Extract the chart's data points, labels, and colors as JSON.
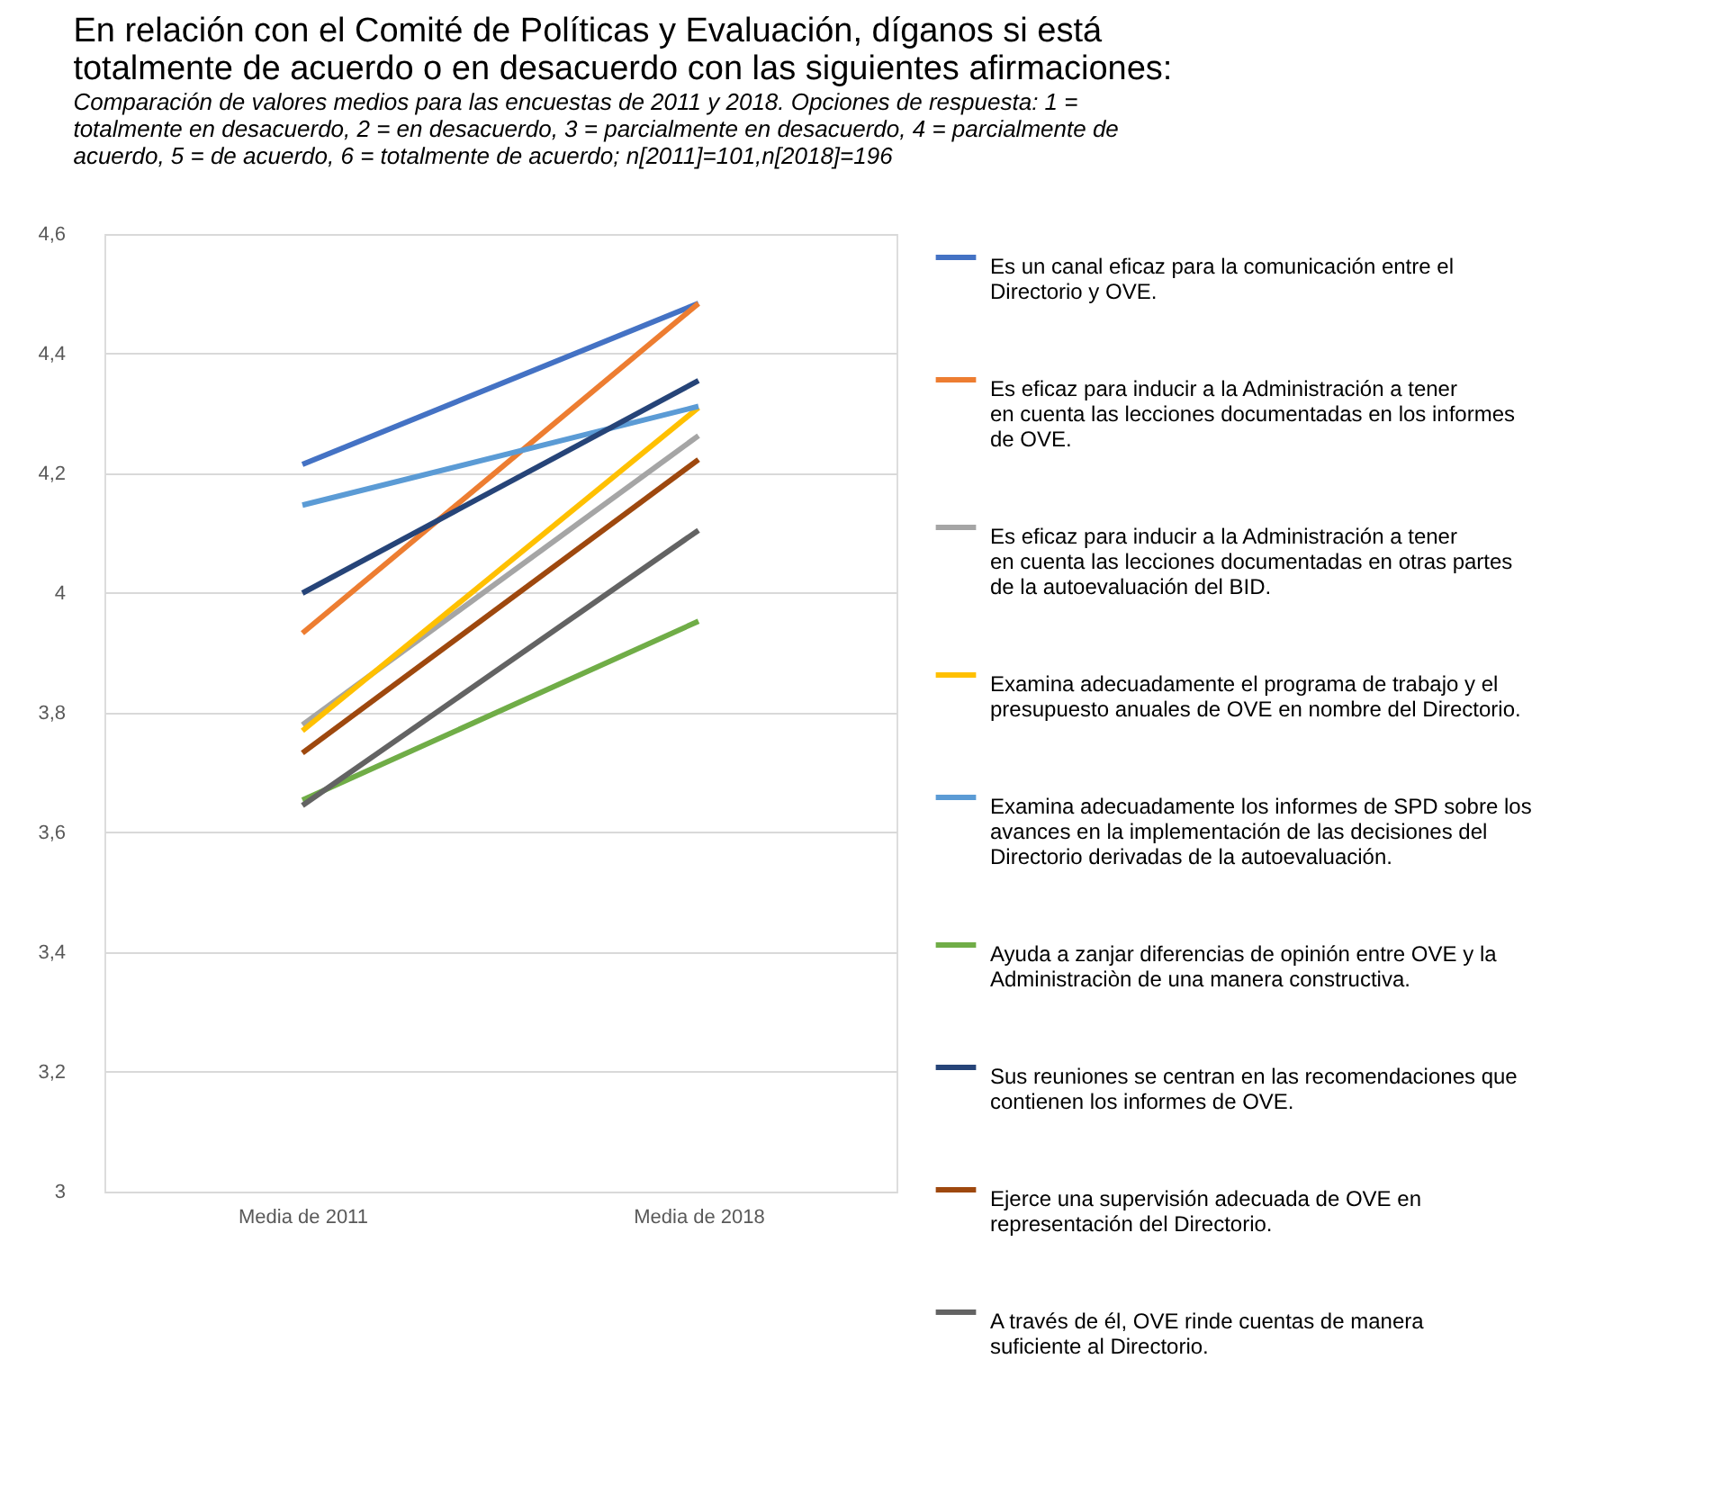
{
  "chart_data": {
    "type": "line",
    "title": "En relación con el Comité de Políticas y Evaluación, díganos si está totalmente de acuerdo o en desacuerdo con las siguientes afirmaciones:",
    "subtitle": "Comparación de valores medios para las encuestas de 2011 y 2018. Opciones de respuesta: 1 = totalmente en desacuerdo, 2 = en desacuerdo, 3 = parcialmente en desacuerdo, 4 = parcialmente de acuerdo, 5 = de acuerdo, 6 = totalmente de acuerdo; n[2011]=101,n[2018]=196",
    "categories": [
      "Media de 2011",
      "Media de 2018"
    ],
    "series": [
      {
        "name": "Es un canal eficaz para la comunicación entre el Directorio y OVE.",
        "color": "#4472c4",
        "values": [
          4.215,
          4.484
        ]
      },
      {
        "name": "Es eficaz para inducir a la Administración a tener en cuenta las lecciones documentadas en los informes de OVE.",
        "color": "#ed7d31",
        "values": [
          3.933,
          4.484
        ]
      },
      {
        "name": "Es eficaz para inducir a la Administración a tener en cuenta las lecciones documentadas en otras partes de la autoevaluación del BID.",
        "color": "#a5a5a5",
        "values": [
          3.78,
          4.263
        ]
      },
      {
        "name": "Examina adecuadamente el programa de trabajo y el presupuesto anuales de OVE en nombre del Directorio.",
        "color": "#ffc000",
        "values": [
          3.77,
          4.31
        ]
      },
      {
        "name": "Examina adecuadamente los informes de SPD sobre los avances en la implementación de las decisiones del Directorio derivadas de la autoevaluación.",
        "color": "#5b9bd5",
        "values": [
          4.147,
          4.312
        ]
      },
      {
        "name": "Ayuda a zanjar diferencias de opinión entre OVE y la Administraciòn de una manera constructiva.",
        "color": "#70ad47",
        "values": [
          3.654,
          3.953
        ]
      },
      {
        "name": "Sus reuniones se centran en las recomendaciones que contienen los informes de OVE.",
        "color": "#264478",
        "values": [
          4.0,
          4.355
        ]
      },
      {
        "name": "Ejerce una supervisión adecuada de OVE en representación del Directorio.",
        "color": "#9e480e",
        "values": [
          3.733,
          4.223
        ]
      },
      {
        "name": "A través de él, OVE rinde cuentas de manera suficiente al Directorio.",
        "color": "#636363",
        "values": [
          3.645,
          4.105
        ]
      }
    ],
    "ylim": [
      3,
      4.6
    ],
    "yticks": [
      {
        "value": 3,
        "label": "3"
      },
      {
        "value": 3.2,
        "label": "3,2"
      },
      {
        "value": 3.4,
        "label": "3,4"
      },
      {
        "value": 3.6,
        "label": "3,6"
      },
      {
        "value": 3.8,
        "label": "3,8"
      },
      {
        "value": 4,
        "label": "4"
      },
      {
        "value": 4.2,
        "label": "4,2"
      },
      {
        "value": 4.4,
        "label": "4,4"
      },
      {
        "value": 4.6,
        "label": "4,6"
      }
    ],
    "grid": "y",
    "legend": "right",
    "marker": "none",
    "line_style": "solid"
  }
}
